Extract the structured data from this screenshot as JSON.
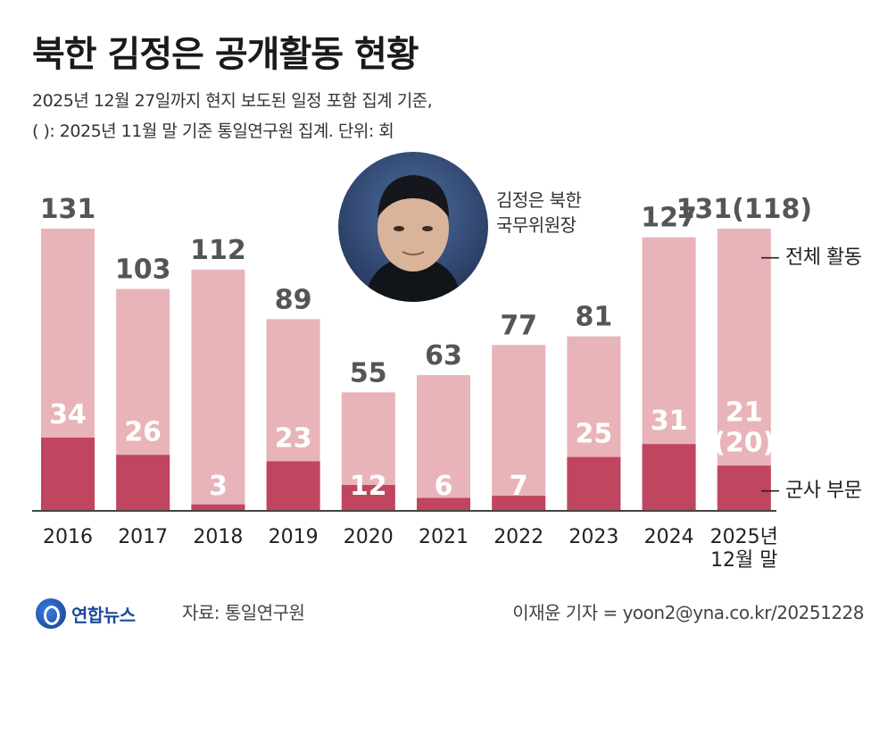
{
  "title": "북한 김정은 공개활동 현황",
  "subtitle_line1": "2025년 12월 27일까지 현지 보도된 일정 포함 집계 기준,",
  "subtitle_line2": "( ): 2025년 11월 말 기준 통일연구원 집계. 단위: 회",
  "photo_caption_line1": "김정은 북한",
  "photo_caption_line2": "국무위원장",
  "photo_icon": "portrait-photo",
  "legend_total": "전체 활동",
  "legend_military": "군사 부문",
  "logo_text": "연합뉴스",
  "source": "자료: 통일연구원",
  "credit": "이재윤 기자 = yoon2@yna.co.kr/20251228",
  "colors": {
    "total": "#e8b4b9",
    "military": "#c0455e",
    "total_label": "#555555",
    "military_label": "#ffffff"
  },
  "chart_data": {
    "type": "bar",
    "stacked": "overlay",
    "categories": [
      "2016",
      "2017",
      "2018",
      "2019",
      "2020",
      "2021",
      "2022",
      "2023",
      "2024",
      "2025년\n12월 말"
    ],
    "series": [
      {
        "name": "전체 활동",
        "values": [
          131,
          103,
          112,
          89,
          55,
          63,
          77,
          81,
          127,
          131
        ],
        "labels": [
          "131",
          "103",
          "112",
          "89",
          "55",
          "63",
          "77",
          "81",
          "127",
          "131(118)"
        ]
      },
      {
        "name": "군사 부문",
        "values": [
          34,
          26,
          3,
          23,
          12,
          6,
          7,
          25,
          31,
          21
        ],
        "labels": [
          "34",
          "26",
          "3",
          "23",
          "12",
          "6",
          "7",
          "25",
          "31",
          "21\n(20)"
        ]
      }
    ],
    "ylim": [
      0,
      131
    ],
    "xlabel": "",
    "ylabel": ""
  }
}
